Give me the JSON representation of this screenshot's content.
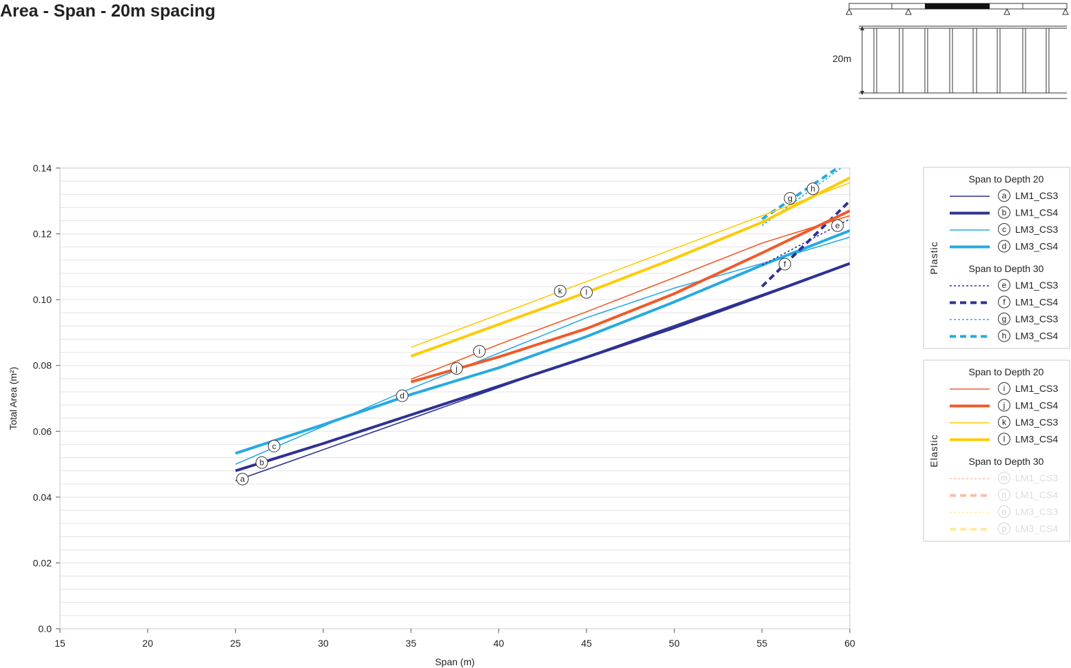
{
  "title": "Area - Span - 20m spacing",
  "diagram": {
    "dimension_label": "20m"
  },
  "chart_data": {
    "type": "line",
    "xlabel": "Span (m)",
    "ylabel": "Total Area (m²)",
    "xlim": [
      15,
      60
    ],
    "ylim": [
      0,
      0.14
    ],
    "xticks": [
      15,
      20,
      25,
      30,
      35,
      40,
      45,
      50,
      55,
      60
    ],
    "yticks": [
      0.0,
      0.02,
      0.04,
      0.06,
      0.08,
      0.1,
      0.12,
      0.14
    ],
    "ytick_labels": [
      "0.0",
      "0.02",
      "0.04",
      "0.06",
      "0.08",
      "0.10",
      "0.12",
      "0.14"
    ],
    "grid": true,
    "colors": {
      "navy": "#2e3192",
      "sky": "#27aae1",
      "orange": "#f15a29",
      "yellow": "#ffcb05"
    },
    "legend_groups": [
      {
        "group": "Plastic",
        "subgroups": [
          {
            "heading": "Span to Depth 20",
            "series": [
              "a",
              "b",
              "c",
              "d"
            ]
          },
          {
            "heading": "Span to Depth 30",
            "series": [
              "e",
              "f",
              "g",
              "h"
            ]
          }
        ]
      },
      {
        "group": "Elastic",
        "subgroups": [
          {
            "heading": "Span to Depth 20",
            "series": [
              "i",
              "j",
              "k",
              "l"
            ]
          },
          {
            "heading": "Span to Depth 30",
            "series": [
              "m",
              "n",
              "o",
              "p"
            ]
          }
        ]
      }
    ],
    "series": [
      {
        "id": "a",
        "name": "LM1_CS3",
        "color": "#2e3192",
        "weight": "thin",
        "dash": "solid",
        "x": [
          25,
          60
        ],
        "y": [
          0.045,
          0.111
        ],
        "label_at": [
          25.4,
          0.0455
        ]
      },
      {
        "id": "b",
        "name": "LM1_CS4",
        "color": "#2e3192",
        "weight": "thick",
        "dash": "solid",
        "x": [
          25,
          30,
          35,
          40,
          45,
          50,
          55,
          60
        ],
        "y": [
          0.048,
          0.0563,
          0.065,
          0.0737,
          0.0825,
          0.0915,
          0.1012,
          0.111
        ],
        "label_at": [
          26.5,
          0.0505
        ]
      },
      {
        "id": "c",
        "name": "LM3_CS3",
        "color": "#27aae1",
        "weight": "thin",
        "dash": "solid",
        "x": [
          25,
          35,
          45,
          50,
          55,
          60
        ],
        "y": [
          0.05,
          0.073,
          0.0945,
          0.1035,
          0.111,
          0.119
        ],
        "label_at": [
          27.2,
          0.0555
        ]
      },
      {
        "id": "d",
        "name": "LM3_CS4",
        "color": "#27aae1",
        "weight": "thick",
        "dash": "solid",
        "x": [
          25,
          30,
          35,
          40,
          45,
          50,
          55,
          60
        ],
        "y": [
          0.0533,
          0.062,
          0.0712,
          0.0793,
          0.0888,
          0.0993,
          0.1105,
          0.121
        ],
        "label_at": [
          34.5,
          0.0708
        ]
      },
      {
        "id": "e",
        "name": "LM1_CS3",
        "color": "#2e3192",
        "weight": "thin",
        "dash": "dotted",
        "x": [
          55,
          60
        ],
        "y": [
          0.1105,
          0.1245
        ],
        "label_at": [
          59.3,
          0.1225
        ]
      },
      {
        "id": "f",
        "name": "LM1_CS4",
        "color": "#2e3192",
        "weight": "thick",
        "dash": "dashed",
        "x": [
          55,
          60
        ],
        "y": [
          0.104,
          0.13
        ],
        "label_at": [
          56.3,
          0.1108
        ]
      },
      {
        "id": "g",
        "name": "LM3_CS3",
        "color": "#27aae1",
        "weight": "thin",
        "dash": "dotted",
        "x": [
          55,
          59.5
        ],
        "y": [
          0.1225,
          0.14
        ],
        "label_at": [
          56.6,
          0.1308
        ]
      },
      {
        "id": "h",
        "name": "LM3_CS4",
        "color": "#27aae1",
        "weight": "thick",
        "dash": "dashed",
        "x": [
          55,
          59.3
        ],
        "y": [
          0.1245,
          0.14
        ],
        "label_at": [
          57.9,
          0.1337
        ]
      },
      {
        "id": "i",
        "name": "LM1_CS3",
        "color": "#f15a29",
        "weight": "thin",
        "dash": "solid",
        "x": [
          35,
          40,
          45,
          50,
          55,
          60
        ],
        "y": [
          0.0758,
          0.0864,
          0.0963,
          0.1067,
          0.1172,
          0.1255
        ],
        "label_at": [
          38.9,
          0.0843
        ]
      },
      {
        "id": "j",
        "name": "LM1_CS4",
        "color": "#f15a29",
        "weight": "thick",
        "dash": "solid",
        "x": [
          35,
          40,
          45,
          50,
          55,
          60
        ],
        "y": [
          0.075,
          0.0826,
          0.0912,
          0.1018,
          0.1142,
          0.127
        ],
        "label_at": [
          37.6,
          0.0791
        ]
      },
      {
        "id": "k",
        "name": "LM3_CS3",
        "color": "#ffcb05",
        "weight": "thin",
        "dash": "solid",
        "x": [
          35,
          60
        ],
        "y": [
          0.0855,
          0.1355
        ],
        "label_at": [
          43.5,
          0.1026
        ]
      },
      {
        "id": "l",
        "name": "LM3_CS4",
        "color": "#ffcb05",
        "weight": "thick",
        "dash": "solid",
        "x": [
          35,
          40,
          45,
          50,
          55,
          60
        ],
        "y": [
          0.0828,
          0.0925,
          0.1022,
          0.1125,
          0.1235,
          0.137
        ],
        "label_at": [
          45.0,
          0.1022
        ]
      },
      {
        "id": "m",
        "name": "LM1_CS3",
        "color": "#f15a29",
        "weight": "thin",
        "dash": "dotted",
        "faded": true,
        "x": [],
        "y": []
      },
      {
        "id": "n",
        "name": "LM1_CS4",
        "color": "#f15a29",
        "weight": "thick",
        "dash": "dashed",
        "faded": true,
        "x": [],
        "y": []
      },
      {
        "id": "o",
        "name": "LM3_CS3",
        "color": "#ffcb05",
        "weight": "thin",
        "dash": "dotted",
        "faded": true,
        "x": [],
        "y": []
      },
      {
        "id": "p",
        "name": "LM3_CS4",
        "color": "#ffcb05",
        "weight": "thick",
        "dash": "dashed",
        "faded": true,
        "x": [],
        "y": []
      }
    ]
  }
}
